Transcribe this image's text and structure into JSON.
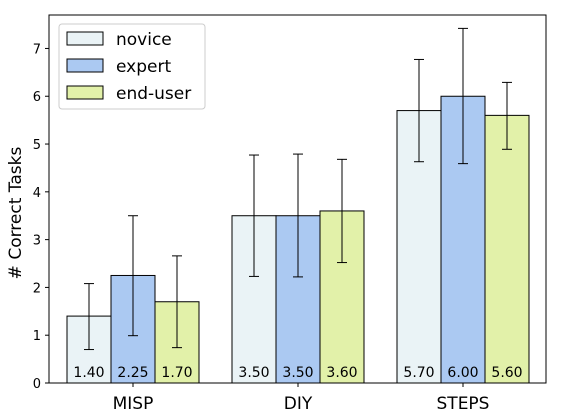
{
  "chart_data": {
    "type": "bar",
    "ylabel": "# Correct Tasks",
    "xlabel": "",
    "ylim": [
      0,
      7.7
    ],
    "yticks": [
      "0",
      "1",
      "2",
      "3",
      "4",
      "5",
      "6",
      "7"
    ],
    "categories": [
      "MISP",
      "DIY",
      "STEPS"
    ],
    "series": [
      {
        "name": "novice",
        "color": "#eaf3f6",
        "values": [
          1.4,
          3.5,
          5.7
        ],
        "value_labels": [
          "1.40",
          "3.50",
          "5.70"
        ],
        "err_low": [
          0.7,
          2.23,
          4.63
        ],
        "err_high": [
          2.08,
          4.77,
          6.77
        ]
      },
      {
        "name": "expert",
        "color": "#abc9f2",
        "values": [
          2.25,
          3.5,
          6.0
        ],
        "value_labels": [
          "2.25",
          "3.50",
          "6.00"
        ],
        "err_low": [
          0.99,
          2.22,
          4.59
        ],
        "err_high": [
          3.5,
          4.79,
          7.42
        ]
      },
      {
        "name": "end-user",
        "color": "#e2f1a9",
        "values": [
          1.7,
          3.6,
          5.6
        ],
        "value_labels": [
          "1.70",
          "3.60",
          "5.60"
        ],
        "err_low": [
          0.74,
          2.52,
          4.89
        ],
        "err_high": [
          2.66,
          4.68,
          6.29
        ]
      }
    ],
    "legend_position": "top-left",
    "grid": false
  }
}
